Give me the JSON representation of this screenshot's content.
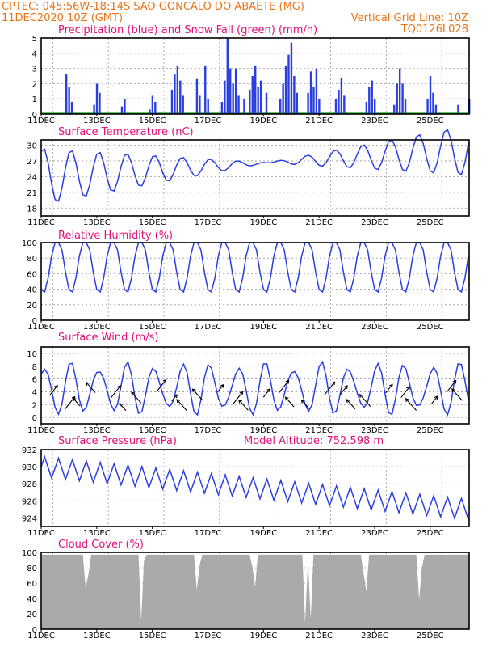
{
  "header": {
    "line1": "CPTEC:   045:56W-18:14S   SAO GONCALO DO ABAETE  (MG)",
    "line2_left": "11DEC2020  10Z (GMT)",
    "line2_right": "Vertical Grid Line: 10Z",
    "line3_right": "TQ0126L028"
  },
  "colors": {
    "header": "#e8741a",
    "title": "#e0107a",
    "line": "#2b3fe0",
    "snow": "#00a000",
    "cloud": "#aaaaaa",
    "arrow": "#000000"
  },
  "x_axis": {
    "tick_labels": [
      "11DEC",
      "13DEC",
      "15DEC",
      "17DEC",
      "19DEC",
      "21DEC",
      "23DEC",
      "25DEC"
    ],
    "day_start": 11,
    "day_end": 26.4
  },
  "chart_data": [
    {
      "type": "bar",
      "title": "Precipitation (blue) and Snow Fall (green) (mm/h)",
      "ylim": [
        0,
        5
      ],
      "yticks": [
        "0",
        "1",
        "2",
        "3",
        "4",
        "5"
      ],
      "series": [
        {
          "name": "Precipitation",
          "points": [
            [
              11.9,
              2.6
            ],
            [
              12.0,
              1.8
            ],
            [
              12.1,
              0.8
            ],
            [
              12.9,
              0.6
            ],
            [
              13.0,
              2.0
            ],
            [
              13.1,
              1.4
            ],
            [
              13.9,
              0.5
            ],
            [
              14.0,
              1.0
            ],
            [
              14.9,
              0.3
            ],
            [
              15.0,
              1.2
            ],
            [
              15.1,
              0.8
            ],
            [
              15.7,
              1.6
            ],
            [
              15.8,
              2.6
            ],
            [
              15.9,
              3.2
            ],
            [
              16.0,
              2.2
            ],
            [
              16.1,
              1.2
            ],
            [
              16.6,
              2.3
            ],
            [
              16.7,
              1.2
            ],
            [
              16.9,
              3.2
            ],
            [
              17.0,
              1.0
            ],
            [
              17.5,
              0.8
            ],
            [
              17.6,
              2.2
            ],
            [
              17.7,
              5.0
            ],
            [
              17.8,
              3.0
            ],
            [
              17.9,
              2.0
            ],
            [
              18.0,
              3.0
            ],
            [
              18.1,
              1.2
            ],
            [
              18.3,
              1.0
            ],
            [
              18.5,
              1.6
            ],
            [
              18.6,
              2.5
            ],
            [
              18.7,
              3.2
            ],
            [
              18.8,
              1.8
            ],
            [
              18.9,
              2.2
            ],
            [
              19.1,
              1.4
            ],
            [
              19.6,
              1.0
            ],
            [
              19.7,
              2.0
            ],
            [
              19.8,
              3.2
            ],
            [
              19.9,
              3.9
            ],
            [
              20.0,
              4.7
            ],
            [
              20.1,
              2.5
            ],
            [
              20.2,
              1.4
            ],
            [
              20.6,
              1.4
            ],
            [
              20.7,
              2.8
            ],
            [
              20.8,
              1.8
            ],
            [
              20.9,
              3.0
            ],
            [
              21.0,
              1.0
            ],
            [
              21.6,
              1.0
            ],
            [
              21.7,
              1.6
            ],
            [
              21.8,
              2.4
            ],
            [
              21.9,
              1.2
            ],
            [
              22.7,
              0.8
            ],
            [
              22.8,
              1.8
            ],
            [
              22.9,
              2.2
            ],
            [
              23.0,
              1.0
            ],
            [
              23.7,
              0.6
            ],
            [
              23.8,
              2.0
            ],
            [
              23.9,
              3.0
            ],
            [
              24.0,
              2.0
            ],
            [
              24.1,
              1.0
            ],
            [
              24.9,
              1.0
            ],
            [
              25.0,
              2.5
            ],
            [
              25.1,
              1.4
            ],
            [
              25.2,
              0.6
            ],
            [
              26.0,
              0.6
            ],
            [
              26.4,
              1.0
            ]
          ]
        },
        {
          "name": "Snow Fall",
          "values": []
        }
      ]
    },
    {
      "type": "line",
      "title": "Surface Temperature (nC)",
      "ylim": [
        16.5,
        31
      ],
      "yticks": [
        "18",
        "21",
        "24",
        "27",
        "30"
      ],
      "series": [
        {
          "name": "Temperature",
          "base_max": 29.5,
          "base_min": 18.5,
          "min_shift_per_day": 0.05
        }
      ]
    },
    {
      "type": "line",
      "title": "Relative Humidity (%)",
      "ylim": [
        0,
        100
      ],
      "yticks": [
        "0",
        "20",
        "40",
        "60",
        "80",
        "100"
      ],
      "series": [
        {
          "name": "Humidity",
          "max": 100,
          "min": 35
        }
      ]
    },
    {
      "type": "line",
      "title": "Surface Wind (m/s)",
      "ylim": [
        -1,
        11
      ],
      "yticks": [
        "0",
        "2",
        "4",
        "6",
        "8",
        "10"
      ],
      "series": [
        {
          "name": "Wind",
          "max": 8,
          "min": 1
        }
      ]
    },
    {
      "type": "line",
      "title": "Surface Pressure (hPa)",
      "annotation": "Model Altitude: 752.598  m",
      "ylim": [
        923,
        932
      ],
      "yticks": [
        "924",
        "926",
        "928",
        "930",
        "932"
      ],
      "series": [
        {
          "name": "Pressure",
          "start": 930,
          "end": 925
        }
      ]
    },
    {
      "type": "area",
      "title": "Cloud Cover (%)",
      "ylim": [
        0,
        100
      ],
      "yticks": [
        "0",
        "20",
        "40",
        "60",
        "80",
        "100"
      ],
      "series": [
        {
          "name": "Cloud Cover",
          "typical": 97
        }
      ]
    }
  ]
}
